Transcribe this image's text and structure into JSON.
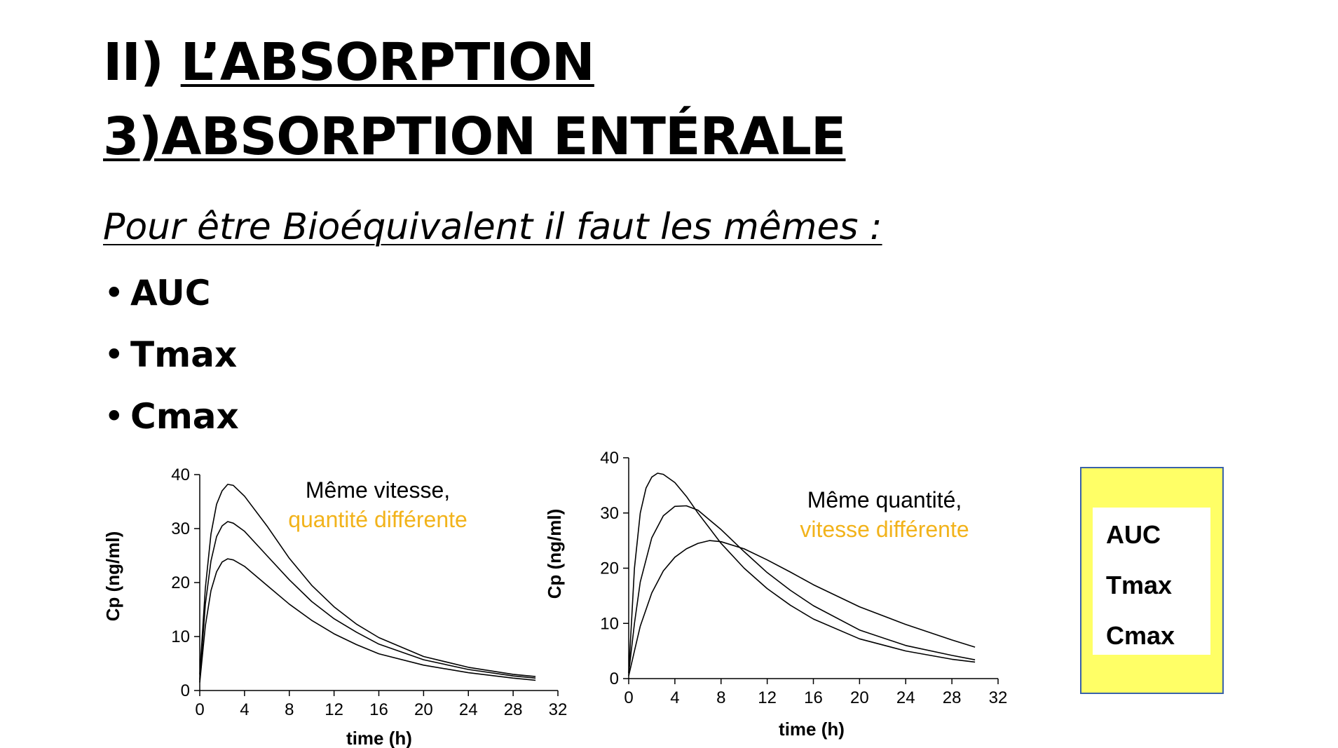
{
  "slide": {
    "title_prefix": "II) ",
    "title_main": "L’ABSORPTION",
    "subtitle_title": "3)ABSORPTION ENTÉRALE",
    "condition_text": "Pour être Bioéquivalent il faut les mêmes :",
    "bullets": [
      "AUC",
      "Tmax",
      "Cmax"
    ],
    "bullet_symbol": "•",
    "side_box": {
      "items": [
        "AUC",
        "Tmax",
        "Cmax"
      ],
      "background": "#ffff66",
      "border": "#3a62a8"
    }
  },
  "chart_data": [
    {
      "type": "line",
      "xlabel": "time (h)",
      "ylabel": "Cp (ng/ml)",
      "xlim": [
        0,
        32
      ],
      "ylim": [
        0,
        40
      ],
      "xticks": [
        0,
        4,
        8,
        12,
        16,
        20,
        24,
        28,
        32
      ],
      "yticks": [
        0,
        10,
        20,
        30,
        40
      ],
      "annotation": {
        "line1": "Même vitesse,",
        "line2": "quantité différente",
        "line2_color": "#f2b31b"
      },
      "series": [
        {
          "x": [
            0,
            0.5,
            1,
            1.5,
            2,
            2.5,
            3,
            4,
            6,
            8,
            10,
            12,
            14,
            16,
            20,
            24,
            28,
            30
          ],
          "y": [
            3,
            19,
            29,
            34.5,
            37,
            38.2,
            38,
            36,
            30.5,
            24.5,
            19.5,
            15.5,
            12.3,
            9.8,
            6.3,
            4.3,
            3,
            2.6
          ]
        },
        {
          "x": [
            0,
            0.5,
            1,
            1.5,
            2,
            2.5,
            3,
            4,
            6,
            8,
            10,
            12,
            14,
            16,
            20,
            24,
            28,
            30
          ],
          "y": [
            2,
            16,
            24,
            28.5,
            30.5,
            31.3,
            31,
            29.5,
            25,
            20.5,
            16.5,
            13.3,
            10.8,
            8.6,
            5.7,
            3.9,
            2.7,
            2.3
          ]
        },
        {
          "x": [
            0,
            0.5,
            1,
            1.5,
            2,
            2.5,
            3,
            4,
            6,
            8,
            10,
            12,
            14,
            16,
            20,
            24,
            28,
            30
          ],
          "y": [
            1.5,
            12,
            18.5,
            22,
            23.8,
            24.4,
            24.2,
            23,
            19.5,
            16,
            13,
            10.5,
            8.5,
            6.8,
            4.7,
            3.3,
            2.3,
            1.9
          ]
        }
      ]
    },
    {
      "type": "line",
      "xlabel": "time (h)",
      "ylabel": "Cp (ng/ml)",
      "xlim": [
        0,
        32
      ],
      "ylim": [
        0,
        40
      ],
      "xticks": [
        0,
        4,
        8,
        12,
        16,
        20,
        24,
        28,
        32
      ],
      "yticks": [
        0,
        10,
        20,
        30,
        40
      ],
      "annotation": {
        "line1": "Même quantité,",
        "line2": "vitesse différente",
        "line2_color": "#f2b31b"
      },
      "series": [
        {
          "x": [
            0,
            0.5,
            1,
            1.5,
            2,
            2.5,
            3,
            4,
            5,
            6,
            8,
            10,
            12,
            14,
            16,
            20,
            24,
            28,
            30
          ],
          "y": [
            1,
            20,
            30,
            34.5,
            36.5,
            37.2,
            37,
            35.5,
            33,
            30,
            24.5,
            20,
            16.3,
            13.3,
            10.8,
            7.2,
            5,
            3.5,
            3
          ]
        },
        {
          "x": [
            0,
            0.5,
            1,
            2,
            3,
            4,
            5,
            6,
            8,
            10,
            12,
            14,
            16,
            20,
            24,
            28,
            30
          ],
          "y": [
            1,
            10,
            17.5,
            25.5,
            29.5,
            31.2,
            31.3,
            30.5,
            27,
            23,
            19.2,
            16,
            13.2,
            8.8,
            6,
            4.2,
            3.4
          ]
        },
        {
          "x": [
            0,
            0.5,
            1,
            2,
            3,
            4,
            5,
            6,
            7,
            8,
            10,
            12,
            14,
            16,
            20,
            24,
            28,
            30
          ],
          "y": [
            0.5,
            5,
            9.5,
            15.5,
            19.5,
            22,
            23.5,
            24.5,
            25,
            24.8,
            23.5,
            21.5,
            19.3,
            17,
            13,
            9.8,
            7,
            5.7
          ]
        }
      ]
    }
  ]
}
